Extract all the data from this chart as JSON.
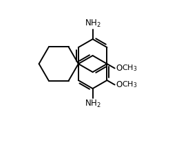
{
  "background_color": "#ffffff",
  "line_color": "#000000",
  "line_width": 1.4,
  "font_size": 8.5,
  "figsize": [
    2.6,
    2.23
  ],
  "dpi": 100,
  "xlim": [
    -1.8,
    2.8
  ],
  "ylim": [
    -1.8,
    3.0
  ]
}
